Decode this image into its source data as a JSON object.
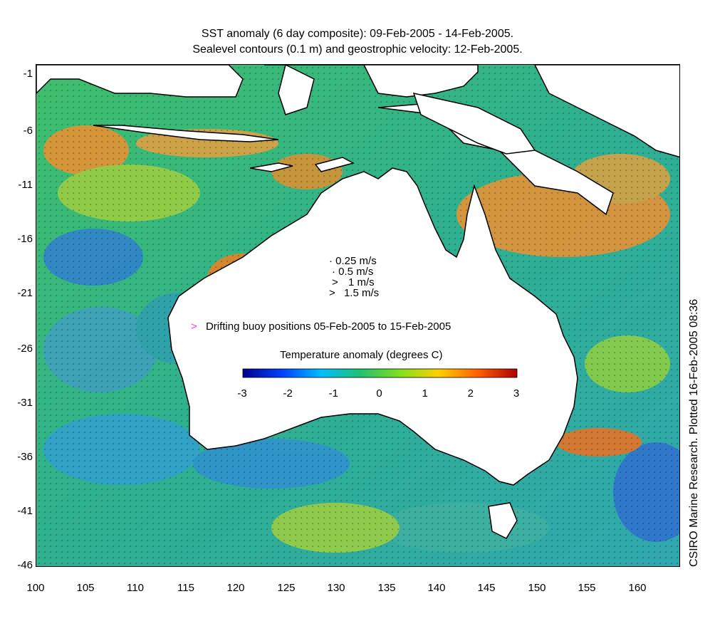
{
  "title_line1": "SST anomaly (6 day composite): 09-Feb-2005 - 14-Feb-2005.",
  "title_line2": "Sealevel contours (0.1 m) and geostrophic velocity: 12-Feb-2005.",
  "credit": "CSIRO Marine Research. Plotted 16-Feb-2005 08:36",
  "y_ticks": [
    "-1",
    "-6",
    "-11",
    "-16",
    "-21",
    "-26",
    "-31",
    "-36",
    "-41",
    "-46"
  ],
  "x_ticks": [
    "100",
    "105",
    "110",
    "115",
    "120",
    "125",
    "130",
    "135",
    "140",
    "145",
    "150",
    "155",
    "160"
  ],
  "velocity_legend": [
    "0.25 m/s",
    "0.5 m/s",
    "1 m/s",
    "1.5 m/s"
  ],
  "buoy_legend": "Drifting buoy positions 05-Feb-2005 to 15-Feb-2005",
  "buoy_color": "#ff33ff",
  "colorbar": {
    "title": "Temperature anomaly (degrees C)",
    "ticks": [
      "-3",
      "-2",
      "-1",
      "0",
      "1",
      "2",
      "3"
    ],
    "colors": [
      "#00008f",
      "#0040ff",
      "#00bfff",
      "#20c070",
      "#80e020",
      "#ffd000",
      "#ff6000",
      "#b00000"
    ]
  },
  "icons": {
    "vector_arrow": "arrow-glyph"
  }
}
